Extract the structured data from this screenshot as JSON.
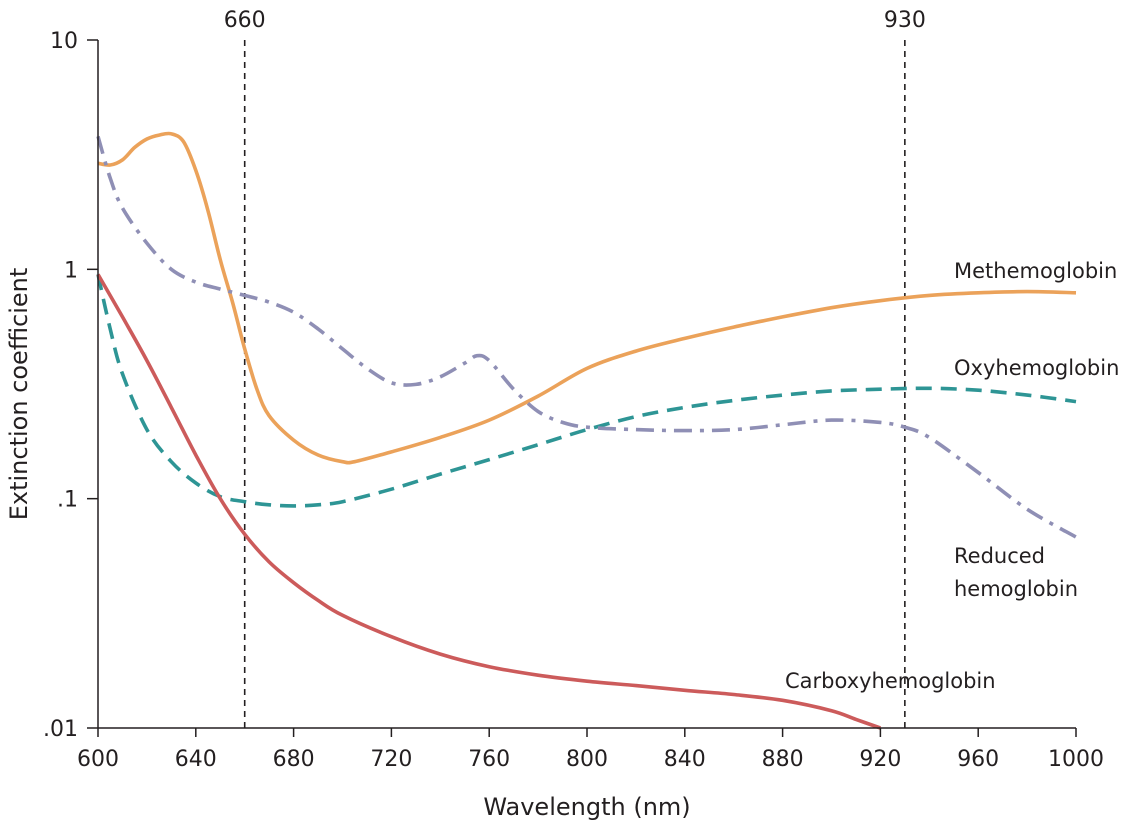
{
  "chart_data": {
    "type": "line",
    "title": "",
    "xlabel": "Wavelength (nm)",
    "ylabel": "Extinction coefficient",
    "xlim": [
      600,
      1000
    ],
    "ylim": [
      0.01,
      10
    ],
    "yscale": "log",
    "grid": false,
    "x_ticks": [
      600,
      640,
      680,
      720,
      760,
      800,
      840,
      880,
      920,
      960,
      1000
    ],
    "x_tick_labels": [
      "600",
      "640",
      "680",
      "720",
      "760",
      "800",
      "840",
      "880",
      "920",
      "960",
      "1000"
    ],
    "y_ticks": [
      0.01,
      0.1,
      1,
      10
    ],
    "y_tick_labels": [
      ".01",
      ".1",
      "1",
      "10"
    ],
    "reference_lines": [
      {
        "x": 660,
        "label": "660"
      },
      {
        "x": 930,
        "label": "930"
      }
    ],
    "series": [
      {
        "name": "Methemoglobin",
        "label_lines": [
          "Methemoglobin"
        ],
        "color": "#eba25a",
        "style": "solid",
        "x": [
          600,
          605,
          610,
          615,
          620,
          625,
          630,
          635,
          640,
          645,
          650,
          655,
          660,
          665,
          670,
          680,
          690,
          700,
          705,
          720,
          740,
          760,
          780,
          800,
          820,
          840,
          860,
          880,
          900,
          920,
          940,
          960,
          980,
          1000
        ],
        "y": [
          2.9,
          2.85,
          3.0,
          3.4,
          3.7,
          3.85,
          3.9,
          3.6,
          2.7,
          1.8,
          1.1,
          0.72,
          0.45,
          0.3,
          0.23,
          0.18,
          0.155,
          0.145,
          0.145,
          0.16,
          0.185,
          0.22,
          0.28,
          0.37,
          0.44,
          0.5,
          0.56,
          0.62,
          0.68,
          0.73,
          0.77,
          0.79,
          0.8,
          0.79
        ]
      },
      {
        "name": "Oxyhemoglobin",
        "label_lines": [
          "Oxyhemoglobin"
        ],
        "color": "#2e9595",
        "style": "dashed",
        "x": [
          600,
          605,
          610,
          620,
          630,
          640,
          650,
          660,
          670,
          680,
          690,
          700,
          720,
          740,
          760,
          780,
          800,
          820,
          840,
          860,
          880,
          900,
          920,
          940,
          960,
          980,
          1000
        ],
        "y": [
          0.95,
          0.55,
          0.35,
          0.2,
          0.145,
          0.117,
          0.102,
          0.097,
          0.094,
          0.093,
          0.094,
          0.097,
          0.11,
          0.128,
          0.148,
          0.172,
          0.2,
          0.228,
          0.25,
          0.268,
          0.283,
          0.295,
          0.3,
          0.303,
          0.297,
          0.283,
          0.265
        ]
      },
      {
        "name": "Reduced hemoglobin",
        "label_lines": [
          "Reduced",
          "hemoglobin"
        ],
        "color": "#8f8fb5",
        "style": "dashdot",
        "x": [
          600,
          605,
          610,
          620,
          630,
          640,
          650,
          660,
          670,
          680,
          690,
          700,
          710,
          720,
          730,
          740,
          750,
          755,
          760,
          770,
          780,
          790,
          800,
          820,
          840,
          860,
          880,
          900,
          920,
          930,
          940,
          960,
          980,
          1000
        ],
        "y": [
          3.8,
          2.5,
          1.85,
          1.3,
          1.0,
          0.88,
          0.82,
          0.77,
          0.72,
          0.65,
          0.55,
          0.45,
          0.37,
          0.32,
          0.315,
          0.34,
          0.39,
          0.42,
          0.4,
          0.3,
          0.24,
          0.215,
          0.205,
          0.2,
          0.198,
          0.2,
          0.21,
          0.22,
          0.215,
          0.205,
          0.185,
          0.13,
          0.09,
          0.068
        ]
      },
      {
        "name": "Carboxyhemoglobin",
        "label_lines": [
          "Carboxyhemoglobin"
        ],
        "color": "#cc5b5b",
        "style": "solid",
        "x": [
          600,
          610,
          620,
          630,
          640,
          650,
          660,
          670,
          680,
          690,
          700,
          720,
          740,
          760,
          780,
          800,
          820,
          840,
          860,
          880,
          900,
          910,
          920
        ],
        "y": [
          0.95,
          0.62,
          0.4,
          0.25,
          0.155,
          0.1,
          0.07,
          0.053,
          0.043,
          0.036,
          0.031,
          0.025,
          0.021,
          0.0185,
          0.017,
          0.016,
          0.0153,
          0.0146,
          0.014,
          0.0132,
          0.0119,
          0.0109,
          0.01
        ]
      }
    ]
  }
}
